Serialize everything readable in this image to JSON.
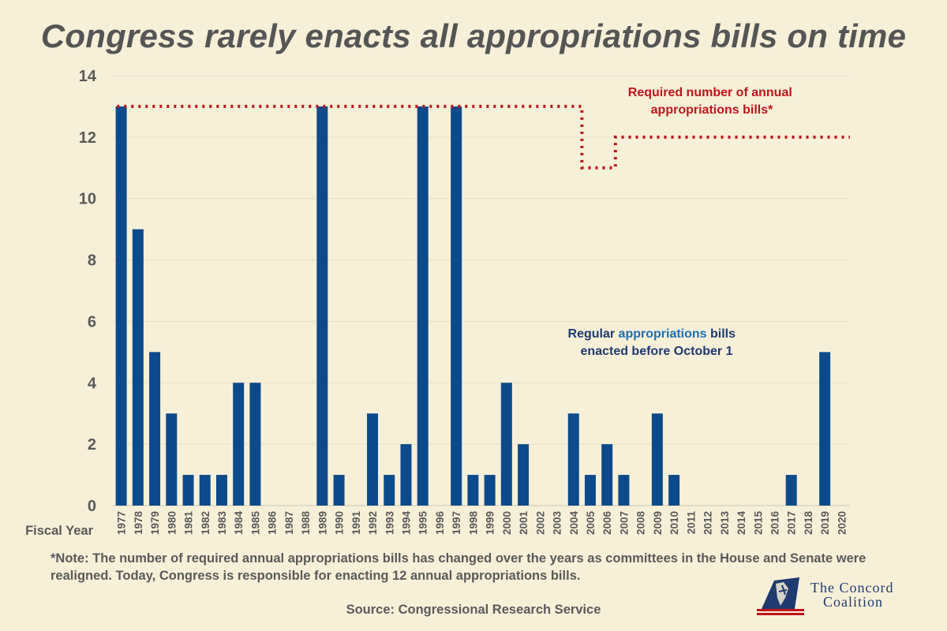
{
  "title": "Congress rarely enacts all appropriations bills on time",
  "note": "*Note: The number of required annual appropriations bills has changed over the years as committees in the House and Senate were realigned. Today, Congress is responsible for enacting 12 annual appropriations bills.",
  "source": "Source: Congressional Research Service",
  "logo": {
    "line1": "The Concord",
    "line2": "Coalition"
  },
  "colors": {
    "bar": "#0d4a8b",
    "required": "#c0141c",
    "text": "#595959",
    "background": "#f7f0d9",
    "grid": "#e6dfc8"
  },
  "chart_data": {
    "type": "bar",
    "xlabel": "Fiscal Year",
    "ylim": [
      0,
      14
    ],
    "yticks": [
      0,
      2,
      4,
      6,
      8,
      10,
      12,
      14
    ],
    "categories": [
      "1977",
      "1978",
      "1979",
      "1980",
      "1981",
      "1982",
      "1983",
      "1984",
      "1985",
      "1986",
      "1987",
      "1988",
      "1989",
      "1990",
      "1991",
      "1992",
      "1993",
      "1994",
      "1995",
      "1996",
      "1997",
      "1998",
      "1999",
      "2000",
      "2001",
      "2002",
      "2003",
      "2004",
      "2005",
      "2006",
      "2007",
      "2008",
      "2009",
      "2010",
      "2011",
      "2012",
      "2013",
      "2014",
      "2015",
      "2016",
      "2017",
      "2018",
      "2019",
      "2020"
    ],
    "series": [
      {
        "name": "Regular appropriations bills enacted before October 1",
        "values": [
          13,
          9,
          5,
          3,
          1,
          1,
          1,
          4,
          4,
          0,
          0,
          0,
          13,
          1,
          0,
          3,
          1,
          2,
          13,
          0,
          13,
          1,
          1,
          4,
          2,
          0,
          0,
          3,
          1,
          2,
          1,
          0,
          3,
          1,
          0,
          0,
          0,
          0,
          0,
          0,
          1,
          0,
          5,
          0
        ]
      },
      {
        "name": "Required number of annual appropriations bills*",
        "type": "step-line",
        "values": [
          13,
          13,
          13,
          13,
          13,
          13,
          13,
          13,
          13,
          13,
          13,
          13,
          13,
          13,
          13,
          13,
          13,
          13,
          13,
          13,
          13,
          13,
          13,
          13,
          13,
          13,
          13,
          13,
          11,
          11,
          12,
          12,
          12,
          12,
          12,
          12,
          12,
          12,
          12,
          12,
          12,
          12,
          12,
          12
        ]
      }
    ],
    "annotations": {
      "required_line1": "Required number of annual",
      "required_line2": "appropriations bills*",
      "bars_part1": "Regular ",
      "bars_part2": "appropriations",
      "bars_part3": " bills",
      "bars_line2": "enacted before October 1"
    }
  }
}
